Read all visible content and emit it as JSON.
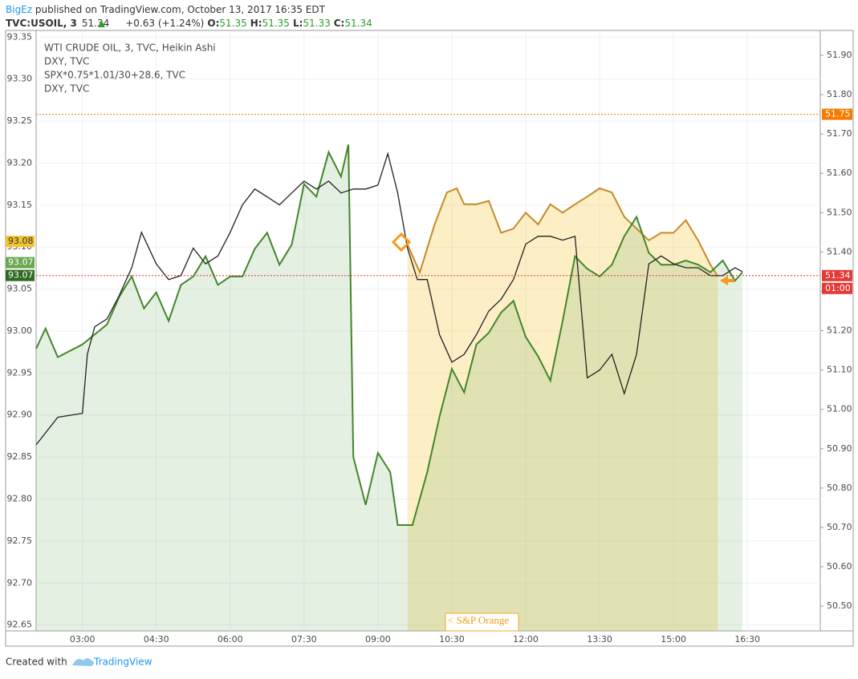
{
  "header": {
    "author": "BigEz",
    "published": "published on TradingView.com, October 13, 2017 16:35 EDT",
    "symbol": "TVC:USOIL, 3",
    "last": 51.34,
    "change": "+0.63 (+1.24%)",
    "ohlc": [
      {
        "label": "O:",
        "value": 51.35
      },
      {
        "label": "H:",
        "value": 51.35
      },
      {
        "label": "L:",
        "value": 51.33
      },
      {
        "label": "C:",
        "value": 51.34
      }
    ]
  },
  "footer": {
    "created": "Created with",
    "brand": "TradingView"
  },
  "chart_data": {
    "type": "line",
    "xlim": [
      2.06,
      17.98
    ],
    "xticks": [
      {
        "value": 3,
        "label": "03:00"
      },
      {
        "value": 4.5,
        "label": "04:30"
      },
      {
        "value": 6,
        "label": "06:00"
      },
      {
        "value": 7.5,
        "label": "07:30"
      },
      {
        "value": 9,
        "label": "09:00"
      },
      {
        "value": 10.5,
        "label": "10:30"
      },
      {
        "value": 12,
        "label": "12:00"
      },
      {
        "value": 13.5,
        "label": "13:30"
      },
      {
        "value": 15,
        "label": "15:00"
      },
      {
        "value": 16.5,
        "label": "16:30"
      }
    ],
    "ylim": [
      92.643,
      93.356
    ],
    "yticks": [
      92.65,
      {
        "value": 92.7,
        "label": "92.70"
      },
      92.75,
      {
        "value": 92.8,
        "label": "92.80"
      },
      92.85,
      {
        "value": 92.9,
        "label": "92.90"
      },
      92.95,
      {
        "value": 93,
        "label": "93.00"
      },
      93.05,
      {
        "value": 93.1,
        "label": "93.10"
      },
      93.15,
      {
        "value": 93.2,
        "label": "93.20"
      },
      93.25,
      {
        "value": 93.3,
        "label": "93.30"
      },
      93.35
    ],
    "y2lim": [
      50.437,
      51.959
    ],
    "y2ticks": [
      {
        "value": 50.5,
        "label": "50.50"
      },
      {
        "value": 50.6,
        "label": "50.60"
      },
      {
        "value": 50.7,
        "label": "50.70"
      },
      {
        "value": 50.8,
        "label": "50.80"
      },
      {
        "value": 50.9,
        "label": "50.90"
      },
      {
        "value": 51,
        "label": "51.00"
      },
      {
        "value": 51.1,
        "label": "51.10"
      },
      {
        "value": 51.2,
        "label": "51.20"
      },
      {
        "value": 51.3,
        "label": "51.30"
      },
      {
        "value": 51.4,
        "label": "51.40"
      },
      {
        "value": 51.5,
        "label": "51.50"
      },
      {
        "value": 51.6,
        "label": "51.60"
      },
      {
        "value": 51.7,
        "label": "51.70"
      },
      {
        "value": 51.8,
        "label": "51.80"
      },
      {
        "value": 51.9,
        "label": "51.90"
      }
    ],
    "grid": true,
    "series": [
      {
        "name": "SPX*0.75*1.01/30+28.6, TVC",
        "color": "#c8892a",
        "fill": "rgba(247,205,90,0.35)",
        "axis": "y",
        "x": [
          9.6,
          9.85,
          10.15,
          10.4,
          10.6,
          10.75,
          11,
          11.25,
          11.5,
          11.75,
          12,
          12.25,
          12.5,
          12.75,
          13,
          13.25,
          13.5,
          13.75,
          14,
          14.25,
          14.5,
          14.75,
          15,
          15.25,
          15.5,
          15.75,
          15.9
        ],
        "values": [
          93.103,
          93.07,
          93.127,
          93.165,
          93.17,
          93.151,
          93.151,
          93.155,
          93.117,
          93.122,
          93.141,
          93.127,
          93.151,
          93.141,
          93.151,
          93.16,
          93.17,
          93.165,
          93.136,
          93.122,
          93.108,
          93.117,
          93.117,
          93.132,
          93.108,
          93.079,
          93.065
        ]
      },
      {
        "name": "DXY, TVC",
        "color": "#43862a",
        "fill": "rgba(120,180,110,0.2)",
        "axis": "y",
        "x": [
          2.06,
          2.25,
          2.5,
          3,
          3.5,
          3.75,
          4,
          4.25,
          4.5,
          4.75,
          5,
          5.25,
          5.5,
          5.75,
          6,
          6.25,
          6.5,
          6.75,
          7,
          7.25,
          7.5,
          7.75,
          8,
          8.25,
          8.4,
          8.5,
          8.75,
          9,
          9.25,
          9.4,
          9.7,
          10,
          10.25,
          10.5,
          10.75,
          11,
          11.25,
          11.5,
          11.75,
          12,
          12.25,
          12.5,
          12.75,
          13,
          13.25,
          13.5,
          13.75,
          14,
          14.25,
          14.5,
          14.75,
          15,
          15.25,
          15.5,
          15.75,
          16,
          16.25,
          16.4
        ],
        "values": [
          92.979,
          93.003,
          92.969,
          92.984,
          93.008,
          93.041,
          93.065,
          93.027,
          93.046,
          93.012,
          93.055,
          93.065,
          93.089,
          93.055,
          93.065,
          93.065,
          93.098,
          93.117,
          93.079,
          93.103,
          93.175,
          93.16,
          93.213,
          93.184,
          93.222,
          92.85,
          92.793,
          92.855,
          92.832,
          92.769,
          92.769,
          92.832,
          92.898,
          92.955,
          92.927,
          92.984,
          92.998,
          93.022,
          93.036,
          92.993,
          92.97,
          92.941,
          93.012,
          93.089,
          93.074,
          93.065,
          93.079,
          93.113,
          93.136,
          93.093,
          93.079,
          93.079,
          93.084,
          93.079,
          93.07,
          93.084,
          93.06,
          93.07
        ]
      },
      {
        "name": "WTI CRUDE OIL, 3, TVC, Heikin Ashi",
        "color": "#222222",
        "axis": "y2",
        "x": [
          2.06,
          2.5,
          3,
          3.1,
          3.25,
          3.5,
          3.75,
          4,
          4.2,
          4.5,
          4.75,
          5,
          5.25,
          5.5,
          5.75,
          6,
          6.25,
          6.5,
          6.75,
          7,
          7.25,
          7.5,
          7.75,
          8,
          8.25,
          8.5,
          8.75,
          9,
          9.2,
          9.4,
          9.6,
          9.8,
          10,
          10.25,
          10.5,
          10.75,
          11,
          11.25,
          11.5,
          11.75,
          12,
          12.25,
          12.5,
          12.75,
          13,
          13.25,
          13.5,
          13.75,
          14,
          14.25,
          14.5,
          14.75,
          15,
          15.25,
          15.5,
          15.75,
          16,
          16.25,
          16.4
        ],
        "values": [
          50.91,
          50.98,
          50.99,
          51.14,
          51.21,
          51.23,
          51.29,
          51.36,
          51.45,
          51.37,
          51.33,
          51.34,
          51.41,
          51.37,
          51.39,
          51.45,
          51.52,
          51.56,
          51.54,
          51.52,
          51.55,
          51.58,
          51.56,
          51.58,
          51.55,
          51.56,
          51.56,
          51.57,
          51.65,
          51.55,
          51.41,
          51.33,
          51.33,
          51.19,
          51.12,
          51.14,
          51.19,
          51.25,
          51.28,
          51.33,
          51.42,
          51.44,
          51.44,
          51.43,
          51.44,
          51.08,
          51.1,
          51.14,
          51.04,
          51.14,
          51.37,
          51.39,
          51.37,
          51.36,
          51.36,
          51.34,
          51.34,
          51.36,
          51.35
        ]
      }
    ],
    "legend_extra": [
      "DXY, TVC"
    ],
    "hlines": [
      {
        "value": 51.75,
        "color": "#f57c00",
        "axis": "y2"
      },
      {
        "value": 51.34,
        "color": "#e53935",
        "axis": "y2"
      }
    ],
    "countdown": "01:00",
    "left_price_labels": [
      {
        "value": 93.08,
        "color": "#f2c230"
      },
      {
        "value": 93.07,
        "color": "#6aa84f"
      },
      {
        "value": 93.07,
        "color": "#2e6b1f"
      }
    ],
    "annotation": "< S&P Orange"
  }
}
